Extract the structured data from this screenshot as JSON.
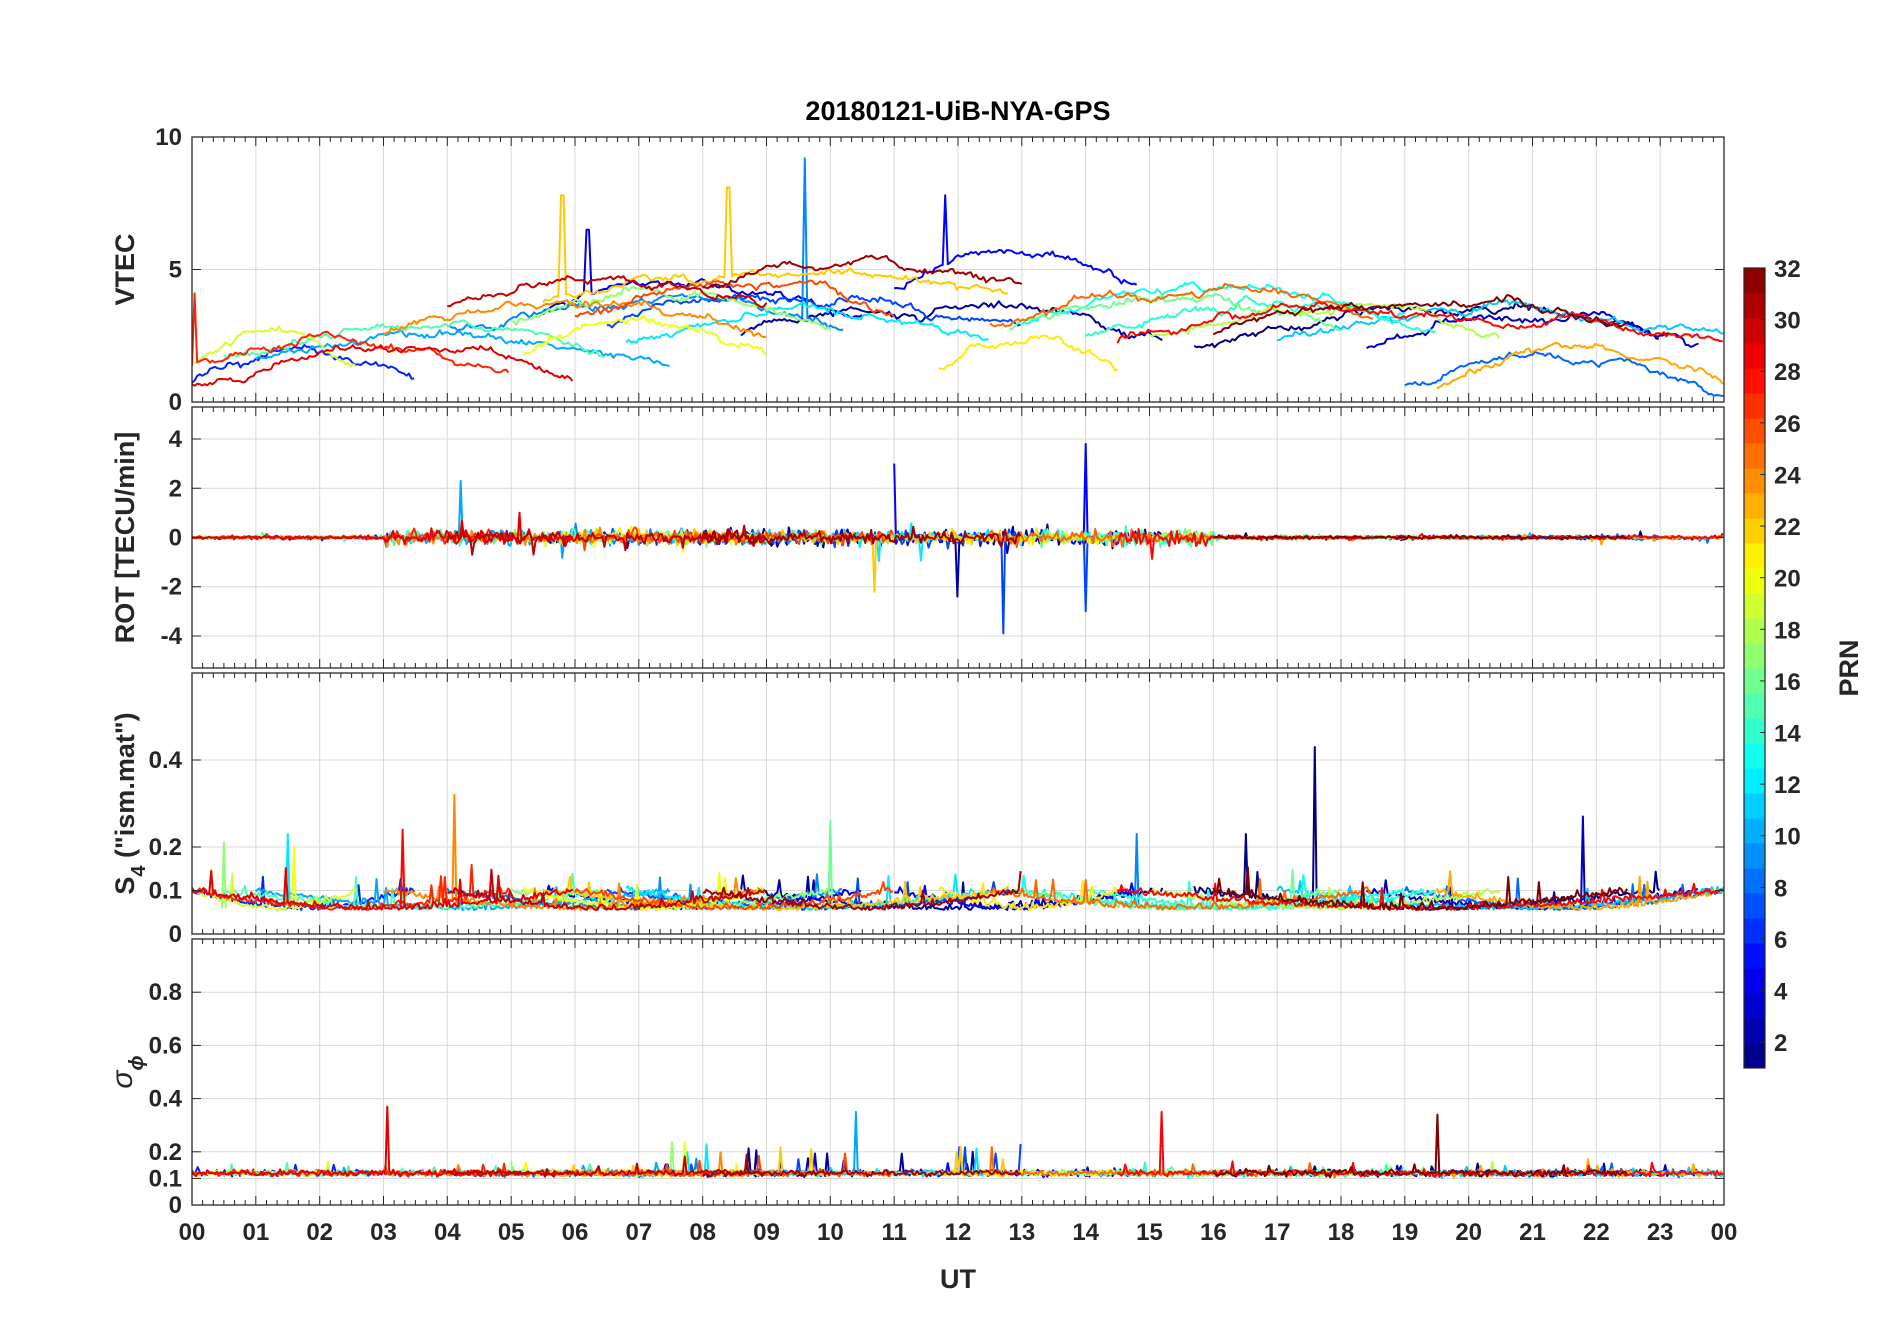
{
  "chart_data": {
    "type": "line",
    "title": "20180121-UiB-NYA-GPS",
    "xlabel": "UT",
    "x_ticks": [
      "00",
      "01",
      "02",
      "03",
      "04",
      "05",
      "06",
      "07",
      "08",
      "09",
      "10",
      "11",
      "12",
      "13",
      "14",
      "15",
      "16",
      "17",
      "18",
      "19",
      "20",
      "21",
      "22",
      "23",
      "00"
    ],
    "xlim_hours": [
      0,
      24
    ],
    "panels": [
      {
        "id": "vtec",
        "ylabel": "VTEC",
        "ylim": [
          0,
          10
        ],
        "yticks": [
          0,
          5,
          10
        ],
        "ytick_labels": [
          "0",
          "5",
          "10"
        ],
        "model": "vtec",
        "description": "Vertical total electron content per PRN, mostly 1-6 TECU with a daytime maximum near 09-13 UT (peak ~9.2)"
      },
      {
        "id": "rot",
        "ylabel": "ROT [TECU/min]",
        "ylim": [
          -5.3,
          5.3
        ],
        "yticks": [
          -4,
          -2,
          0,
          2,
          4
        ],
        "ytick_labels": [
          "-4",
          "-2",
          "0",
          "2",
          "4"
        ],
        "model": "rot",
        "description": "Rate of TEC change fluctuating around 0, largest spikes ~ +3.8 near 14 UT and ~ -3.9 near 12.7 UT"
      },
      {
        "id": "s4",
        "ylabel_main": "S",
        "ylabel_sub": "4",
        "ylabel_rest": " (\"ism.mat\")",
        "ylim": [
          0,
          0.6
        ],
        "yticks": [
          0,
          0.1,
          0.2,
          0.4
        ],
        "ytick_labels": [
          "0",
          "0.1",
          "0.2",
          "0.4"
        ],
        "model": "s4",
        "description": "Amplitude scintillation index, baseline ~0.05-0.1, peak ~0.43 near 17.6 UT"
      },
      {
        "id": "sigphi",
        "ylabel_main": "σ",
        "ylabel_sub": "ϕ",
        "ylim": [
          0,
          1
        ],
        "yticks": [
          0,
          0.1,
          0.2,
          0.4,
          0.6,
          0.8
        ],
        "ytick_labels": [
          "0",
          "0.1",
          "0.2",
          "0.4",
          "0.6",
          "0.8"
        ],
        "model": "sigphi",
        "description": "Phase scintillation index, baseline ~0.1-0.15, spikes ~0.37 near 3 UT and ~0.35 near 15.2 UT"
      }
    ],
    "colorbar": {
      "label": "PRN",
      "range": [
        1,
        32
      ],
      "colormap": "jet",
      "ticks": [
        2,
        4,
        6,
        8,
        10,
        12,
        14,
        16,
        18,
        20,
        22,
        24,
        26,
        28,
        30,
        32
      ],
      "tick_labels": [
        "2",
        "4",
        "6",
        "8",
        "10",
        "12",
        "14",
        "16",
        "18",
        "20",
        "22",
        "24",
        "26",
        "28",
        "30",
        "32"
      ]
    },
    "series": [
      {
        "name": "PRN 1",
        "prn": 1,
        "pass_start": 15.7,
        "pass_end": 23.0,
        "base_vtec": 3.4,
        "spikes": [
          {
            "panel": "s4",
            "t": 17.6,
            "v": 0.43
          },
          {
            "panel": "s4",
            "t": 16.5,
            "v": 0.23
          }
        ]
      },
      {
        "name": "PRN 2",
        "prn": 2,
        "pass_start": 8.6,
        "pass_end": 15.2,
        "base_vtec": 3.8,
        "spikes": [
          {
            "panel": "rot",
            "t": 12.0,
            "v": -2.4
          }
        ]
      },
      {
        "name": "PRN 3",
        "prn": 3,
        "pass_start": 18.4,
        "pass_end": 23.6,
        "base_vtec": 3.2,
        "spikes": [
          {
            "panel": "s4",
            "t": 21.8,
            "v": 0.27
          }
        ]
      },
      {
        "name": "PRN 4",
        "prn": 4,
        "pass_start": 5.5,
        "pass_end": 10.5,
        "base_vtec": 4.5,
        "spikes": [
          {
            "panel": "vtec",
            "t": 6.2,
            "v": 6.5
          }
        ]
      },
      {
        "name": "PRN 5",
        "prn": 5,
        "pass_start": 11.0,
        "pass_end": 14.8,
        "base_vtec": 5.5,
        "spikes": [
          {
            "panel": "vtec",
            "t": 11.8,
            "v": 7.8
          },
          {
            "panel": "rot",
            "t": 11.0,
            "v": 3.0
          },
          {
            "panel": "rot",
            "t": 14.0,
            "v": 3.8
          }
        ]
      },
      {
        "name": "PRN 6",
        "prn": 6,
        "pass_start": 0.0,
        "pass_end": 3.5,
        "base_vtec": 2.0,
        "spikes": []
      },
      {
        "name": "PRN 7",
        "prn": 7,
        "pass_start": 6.5,
        "pass_end": 13.0,
        "base_vtec": 4.0,
        "spikes": [
          {
            "panel": "rot",
            "t": 12.7,
            "v": -3.9
          },
          {
            "panel": "rot",
            "t": 14.0,
            "v": -3.0
          }
        ]
      },
      {
        "name": "PRN 8",
        "prn": 8,
        "pass_start": 19.0,
        "pass_end": 24.0,
        "base_vtec": 1.8,
        "spikes": []
      },
      {
        "name": "PRN 9",
        "prn": 9,
        "pass_start": 4.0,
        "pass_end": 10.2,
        "base_vtec": 4.0,
        "spikes": [
          {
            "panel": "vtec",
            "t": 9.6,
            "v": 9.2
          },
          {
            "panel": "s4",
            "t": 14.8,
            "v": 0.23
          }
        ]
      },
      {
        "name": "PRN 10",
        "prn": 10,
        "pass_start": 1.0,
        "pass_end": 7.5,
        "base_vtec": 2.8,
        "spikes": [
          {
            "panel": "rot",
            "t": 4.2,
            "v": 2.3
          },
          {
            "panel": "sigphi",
            "t": 10.4,
            "v": 0.35
          }
        ]
      },
      {
        "name": "PRN 11",
        "prn": 11,
        "pass_start": 17.0,
        "pass_end": 24.0,
        "base_vtec": 3.6,
        "spikes": []
      },
      {
        "name": "PRN 12",
        "prn": 12,
        "pass_start": 6.8,
        "pass_end": 12.5,
        "base_vtec": 3.5,
        "spikes": [
          {
            "panel": "s4",
            "t": 1.5,
            "v": 0.23
          }
        ]
      },
      {
        "name": "PRN 13",
        "prn": 13,
        "pass_start": 13.0,
        "pass_end": 19.0,
        "base_vtec": 4.2,
        "spikes": []
      },
      {
        "name": "PRN 14",
        "prn": 14,
        "pass_start": 14.0,
        "pass_end": 19.5,
        "base_vtec": 3.8,
        "spikes": []
      },
      {
        "name": "PRN 15",
        "prn": 15,
        "pass_start": 0.5,
        "pass_end": 6.5,
        "base_vtec": 3.0,
        "spikes": []
      },
      {
        "name": "PRN 16",
        "prn": 16,
        "pass_start": 12.8,
        "pass_end": 18.0,
        "base_vtec": 4.0,
        "spikes": [
          {
            "panel": "s4",
            "t": 10.0,
            "v": 0.26
          }
        ]
      },
      {
        "name": "PRN 17",
        "prn": 17,
        "pass_start": 5.0,
        "pass_end": 10.0,
        "base_vtec": 4.2,
        "spikes": [
          {
            "panel": "s4",
            "t": 0.5,
            "v": 0.21
          }
        ]
      },
      {
        "name": "PRN 18",
        "prn": 18,
        "pass_start": 15.0,
        "pass_end": 20.5,
        "base_vtec": 3.8,
        "spikes": []
      },
      {
        "name": "PRN 19",
        "prn": 19,
        "pass_start": 0.0,
        "pass_end": 2.6,
        "base_vtec": 2.6,
        "spikes": []
      },
      {
        "name": "PRN 20",
        "prn": 20,
        "pass_start": 5.2,
        "pass_end": 9.0,
        "base_vtec": 3.0,
        "spikes": [
          {
            "panel": "s4",
            "t": 1.6,
            "v": 0.2
          }
        ]
      },
      {
        "name": "PRN 21",
        "prn": 21,
        "pass_start": 11.7,
        "pass_end": 14.5,
        "base_vtec": 2.5,
        "spikes": []
      },
      {
        "name": "PRN 22",
        "prn": 22,
        "pass_start": 5.5,
        "pass_end": 12.8,
        "base_vtec": 5.0,
        "spikes": [
          {
            "panel": "vtec",
            "t": 8.4,
            "v": 8.1
          },
          {
            "panel": "vtec",
            "t": 5.8,
            "v": 7.8
          },
          {
            "panel": "rot",
            "t": 10.7,
            "v": -2.2
          }
        ]
      },
      {
        "name": "PRN 23",
        "prn": 23,
        "pass_start": 19.5,
        "pass_end": 24.0,
        "base_vtec": 1.8,
        "spikes": []
      },
      {
        "name": "PRN 24",
        "prn": 24,
        "pass_start": 3.0,
        "pass_end": 9.0,
        "base_vtec": 3.8,
        "spikes": [
          {
            "panel": "s4",
            "t": 4.1,
            "v": 0.32
          }
        ]
      },
      {
        "name": "PRN 25",
        "prn": 25,
        "pass_start": 12.5,
        "pass_end": 18.5,
        "base_vtec": 4.2,
        "spikes": []
      },
      {
        "name": "PRN 26",
        "prn": 26,
        "pass_start": 6.0,
        "pass_end": 11.0,
        "base_vtec": 4.5,
        "spikes": []
      },
      {
        "name": "PRN 27",
        "prn": 27,
        "pass_start": 0.0,
        "pass_end": 5.0,
        "base_vtec": 2.5,
        "spikes": [
          {
            "panel": "vtec",
            "t": 0.05,
            "v": 4.1
          }
        ]
      },
      {
        "name": "PRN 28",
        "prn": 28,
        "pass_start": 14.5,
        "pass_end": 24.0,
        "base_vtec": 3.5,
        "spikes": [
          {
            "panel": "sigphi",
            "t": 15.2,
            "v": 0.35
          },
          {
            "panel": "s4",
            "t": 3.3,
            "v": 0.24
          }
        ]
      },
      {
        "name": "PRN 29",
        "prn": 29,
        "pass_start": 0.0,
        "pass_end": 6.0,
        "base_vtec": 1.8,
        "spikes": [
          {
            "panel": "sigphi",
            "t": 3.05,
            "v": 0.37
          }
        ]
      },
      {
        "name": "PRN 30",
        "prn": 30,
        "pass_start": 4.0,
        "pass_end": 9.0,
        "base_vtec": 4.8,
        "spikes": []
      },
      {
        "name": "PRN 31",
        "prn": 31,
        "pass_start": 8.0,
        "pass_end": 13.0,
        "base_vtec": 5.5,
        "spikes": []
      },
      {
        "name": "PRN 32",
        "prn": 32,
        "pass_start": 16.0,
        "pass_end": 22.5,
        "base_vtec": 3.8,
        "spikes": [
          {
            "panel": "sigphi",
            "t": 19.5,
            "v": 0.34
          }
        ]
      }
    ]
  }
}
